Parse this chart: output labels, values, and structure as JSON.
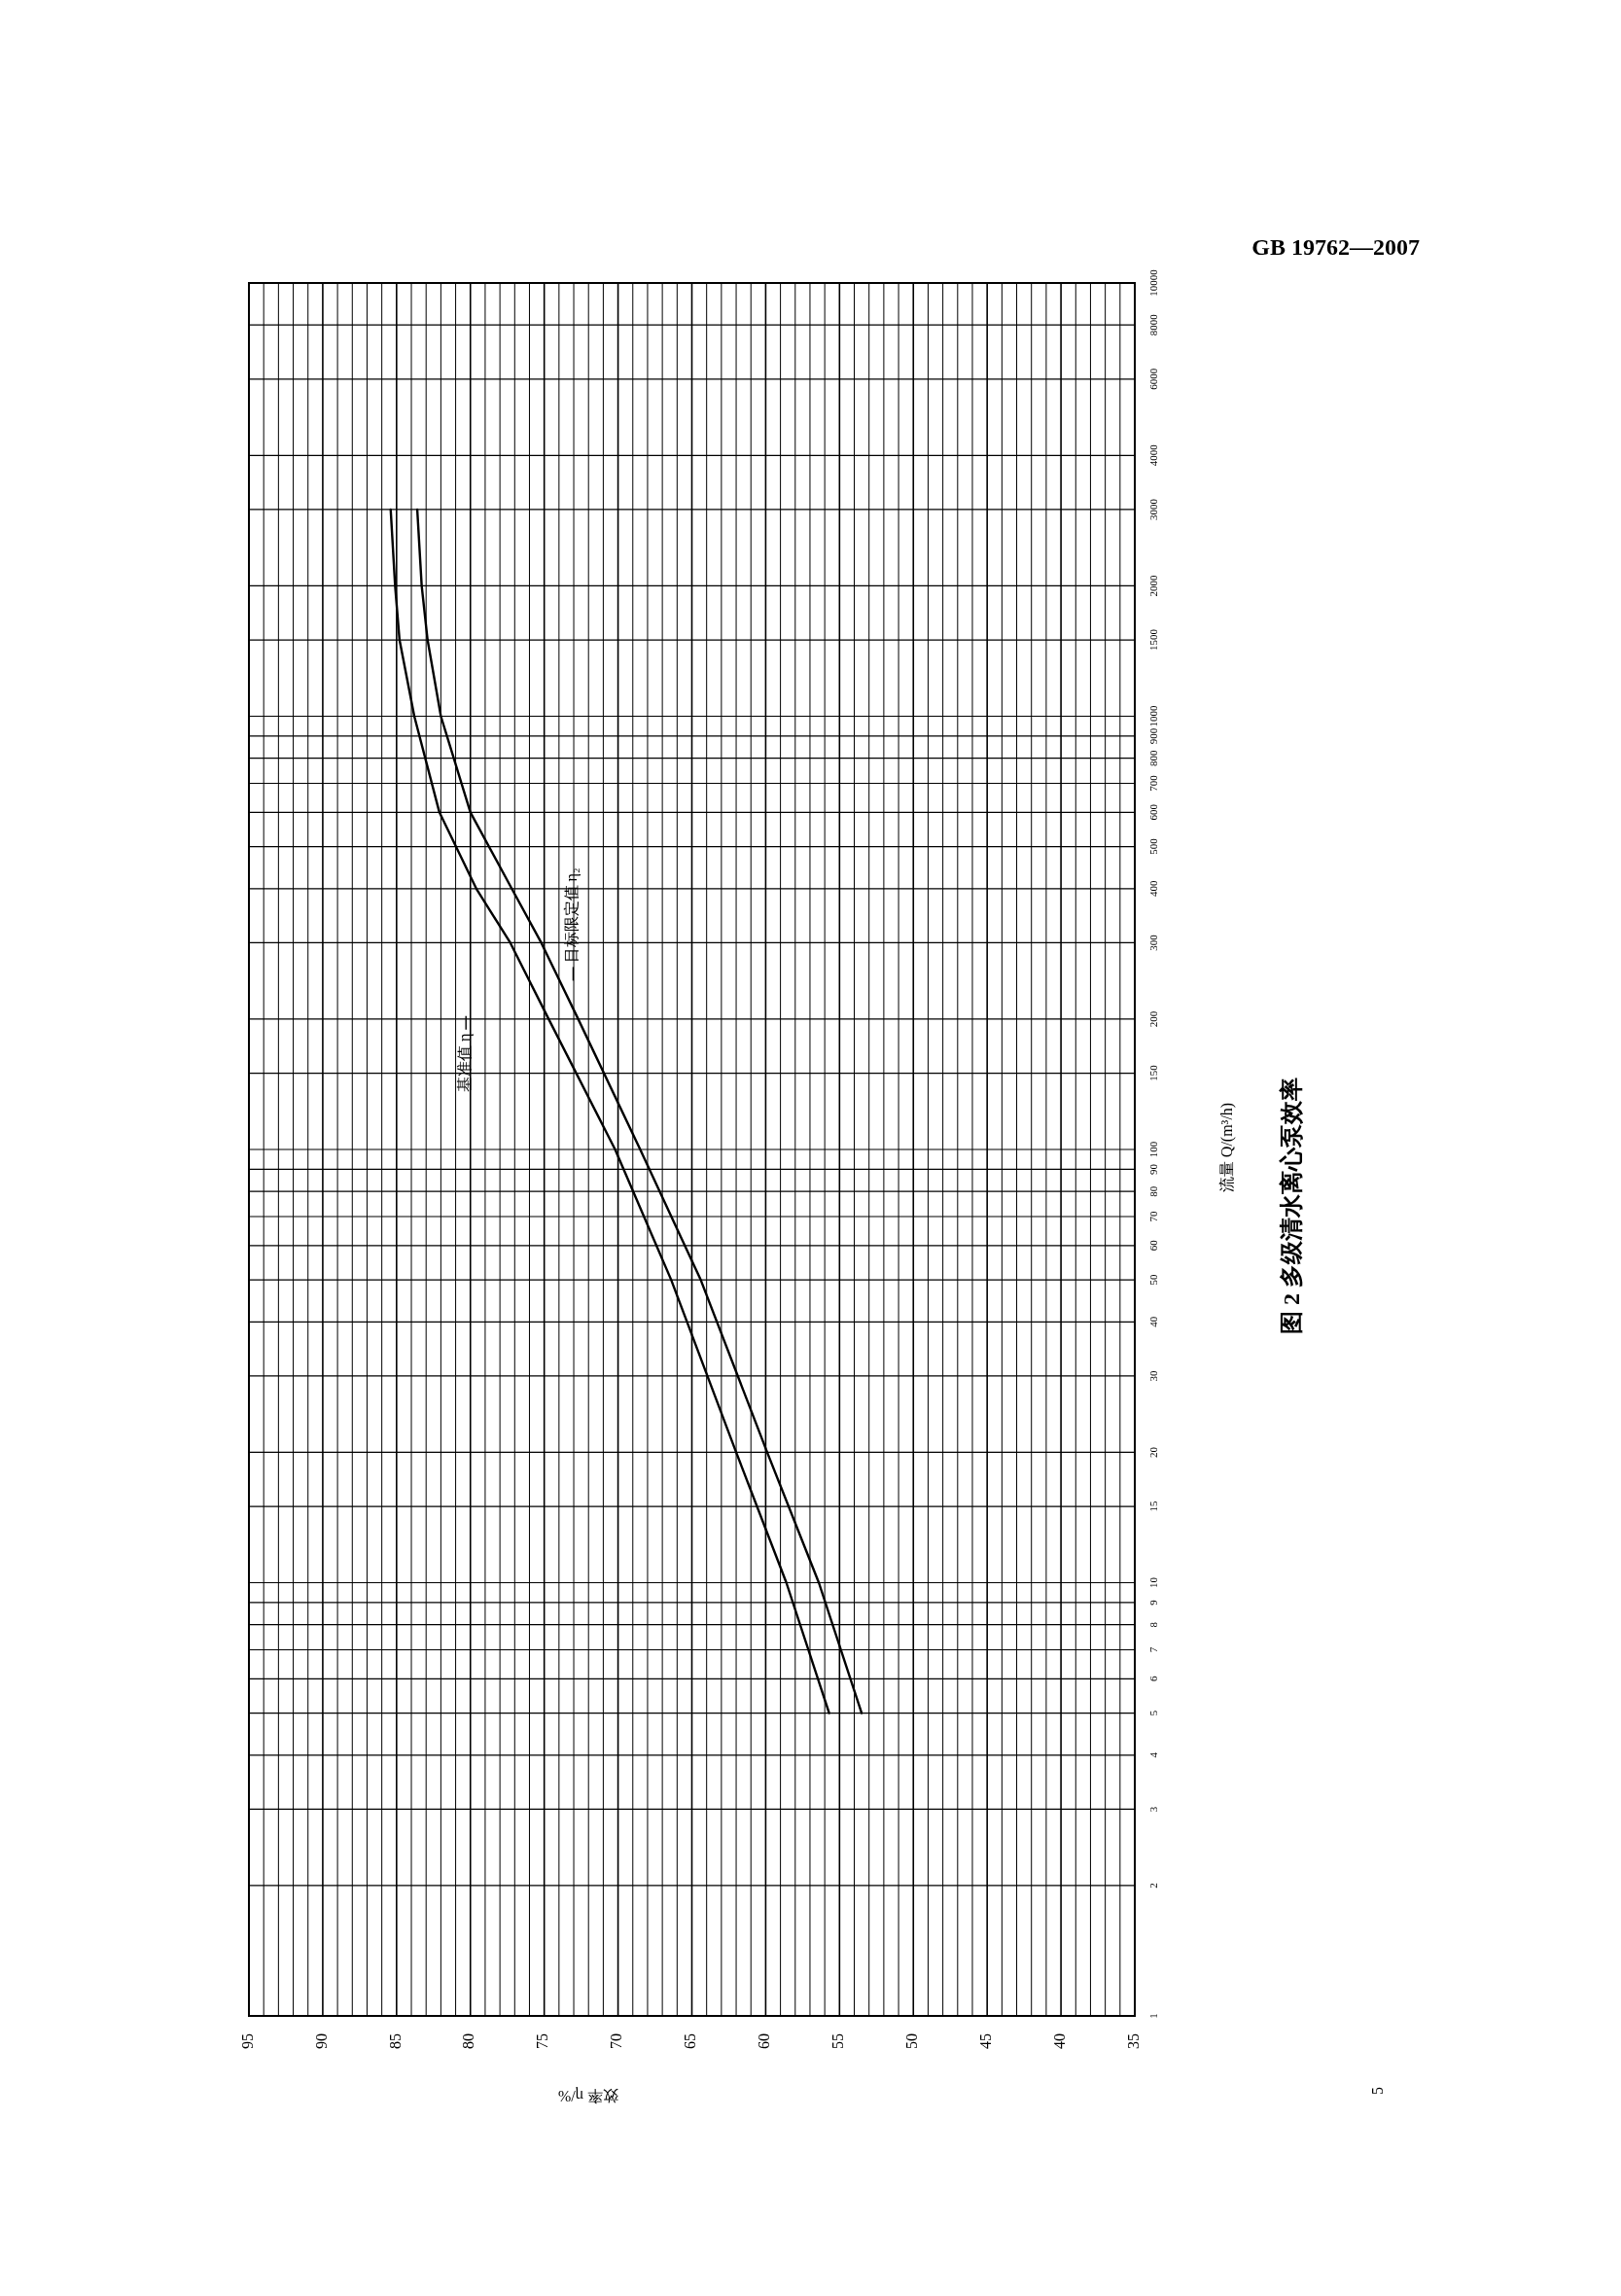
{
  "chart_data": {
    "type": "line",
    "title": "图 2 多级清水离心泵效率",
    "xlabel": "效率 η/%",
    "ylabel": "流量 Q/(m³/h)",
    "annotations": [
      "GB 19762—2007",
      "5"
    ],
    "log": "y",
    "grid": true,
    "series": [
      {
        "name": "基准值 η",
        "color": "#000000",
        "x": [
          55.7,
          58.6,
          62.0,
          66.4,
          70.2,
          74.7,
          77.3,
          79.6,
          82.1,
          83.8,
          84.8,
          85.1,
          85.4
        ],
        "values": [
          5,
          10,
          20,
          50,
          100,
          200,
          300,
          400,
          600,
          1000,
          1500,
          2000,
          3000
        ]
      },
      {
        "name": "目标限定值 η₂",
        "color": "#000000",
        "x": [
          53.5,
          56.4,
          59.9,
          64.4,
          68.5,
          72.7,
          75.2,
          77.2,
          80.0,
          82.0,
          82.9,
          83.3,
          83.6
        ],
        "values": [
          5,
          10,
          20,
          50,
          100,
          200,
          300,
          400,
          600,
          1000,
          1500,
          2000,
          3000
        ]
      }
    ],
    "ylim": [
      1,
      10000
    ],
    "yticks": [
      1,
      2,
      3,
      4,
      5,
      6,
      7,
      8,
      9,
      10,
      15,
      20,
      30,
      40,
      50,
      60,
      70,
      80,
      90,
      100,
      150,
      200,
      300,
      400,
      500,
      600,
      700,
      800,
      900,
      1000,
      1500,
      2000,
      3000,
      4000,
      6000,
      8000,
      10000
    ],
    "xlim": [
      95,
      35
    ],
    "xticks": [
      95,
      {
        "value": 94,
        "label": null
      },
      {
        "value": 93,
        "label": null
      },
      {
        "value": 92,
        "label": null
      },
      {
        "value": 91,
        "label": null
      },
      90,
      {
        "value": 89,
        "label": null
      },
      {
        "value": 88,
        "label": null
      },
      {
        "value": 87,
        "label": null
      },
      {
        "value": 86,
        "label": null
      },
      85,
      {
        "value": 84,
        "label": null
      },
      {
        "value": 83,
        "label": null
      },
      {
        "value": 82,
        "label": null
      },
      {
        "value": 81,
        "label": null
      },
      80,
      {
        "value": 79,
        "label": null
      },
      {
        "value": 78,
        "label": null
      },
      {
        "value": 77,
        "label": null
      },
      {
        "value": 76,
        "label": null
      },
      75,
      {
        "value": 74,
        "label": null
      },
      {
        "value": 73,
        "label": null
      },
      {
        "value": 72,
        "label": null
      },
      {
        "value": 71,
        "label": null
      },
      70,
      {
        "value": 69,
        "label": null
      },
      {
        "value": 68,
        "label": null
      },
      {
        "value": 67,
        "label": null
      },
      {
        "value": 66,
        "label": null
      },
      65,
      {
        "value": 64,
        "label": null
      },
      {
        "value": 63,
        "label": null
      },
      {
        "value": 62,
        "label": null
      },
      {
        "value": 61,
        "label": null
      },
      60,
      {
        "value": 59,
        "label": null
      },
      {
        "value": 58,
        "label": null
      },
      {
        "value": 57,
        "label": null
      },
      {
        "value": 56,
        "label": null
      },
      55,
      {
        "value": 54,
        "label": null
      },
      {
        "value": 53,
        "label": null
      },
      {
        "value": 52,
        "label": null
      },
      {
        "value": 51,
        "label": null
      },
      50,
      {
        "value": 49,
        "label": null
      },
      {
        "value": 48,
        "label": null
      },
      {
        "value": 47,
        "label": null
      },
      {
        "value": 46,
        "label": null
      },
      45,
      {
        "value": 44,
        "label": null
      },
      {
        "value": 43,
        "label": null
      },
      {
        "value": 42,
        "label": null
      },
      {
        "value": 41,
        "label": null
      },
      40,
      {
        "value": 39,
        "label": null
      },
      {
        "value": 38,
        "label": null
      },
      {
        "value": 37,
        "label": null
      },
      {
        "value": 36,
        "label": null
      },
      35
    ]
  }
}
